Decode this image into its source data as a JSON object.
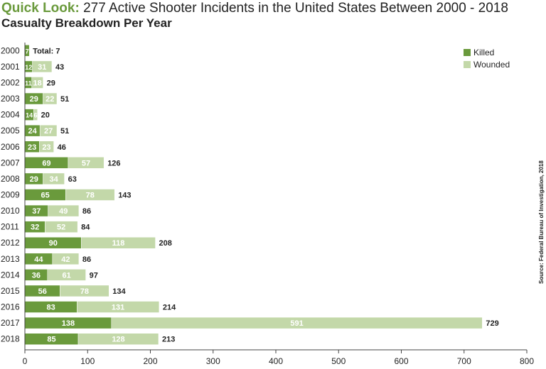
{
  "header": {
    "title_prefix": "Quick Look:",
    "title_main": "277 Active Shooter Incidents in the United States Between 2000 - 2018",
    "subtitle": "Casualty Breakdown Per Year"
  },
  "source": "Source: Federal Bureau of Investigation, 2018",
  "colors": {
    "killed": "#6a9a3c",
    "wounded": "#c3d8a9",
    "label_dark": "#222222",
    "axis": "#444444"
  },
  "chart_data": {
    "type": "bar",
    "orientation": "horizontal",
    "stacked": true,
    "categories": [
      "2000",
      "2001",
      "2002",
      "2003",
      "2004",
      "2005",
      "2006",
      "2007",
      "2008",
      "2009",
      "2010",
      "2011",
      "2012",
      "2013",
      "2014",
      "2015",
      "2016",
      "2017",
      "2018"
    ],
    "series": [
      {
        "name": "Killed",
        "values": [
          7,
          12,
          11,
          29,
          14,
          24,
          23,
          69,
          29,
          65,
          37,
          32,
          90,
          44,
          36,
          56,
          83,
          138,
          85
        ]
      },
      {
        "name": "Wounded",
        "values": [
          0,
          31,
          18,
          22,
          6,
          27,
          23,
          57,
          34,
          78,
          49,
          52,
          118,
          42,
          61,
          78,
          131,
          591,
          128
        ]
      }
    ],
    "totals": [
      7,
      43,
      29,
      51,
      20,
      51,
      46,
      126,
      63,
      143,
      86,
      84,
      208,
      86,
      97,
      134,
      214,
      729,
      213
    ],
    "first_total_prefix": "Total: ",
    "xlim": [
      0,
      800
    ],
    "xticks": [
      0,
      100,
      200,
      300,
      400,
      500,
      600,
      700,
      800
    ],
    "legend": "top-right",
    "grid": false
  }
}
